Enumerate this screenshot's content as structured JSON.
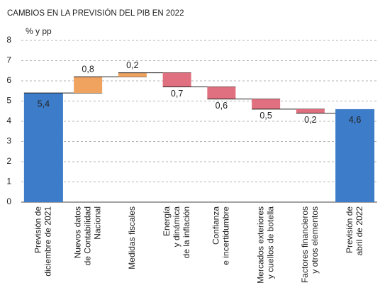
{
  "chart_data": {
    "type": "waterfall",
    "subtitle": "CAMBIOS EN LA PREVISIÓN DEL PIB EN 2022",
    "y_label": "% y pp",
    "categories": [
      [
        "Previsión de",
        "diciembre de 2021"
      ],
      [
        "Nuevos datos",
        "de Contabilidad",
        "Nacional"
      ],
      [
        "Medidas fiscales"
      ],
      [
        "Energía",
        "y dinámica",
        "de la inflación"
      ],
      [
        "Confianza",
        "e incertidumbre"
      ],
      [
        "Mercados exteriores",
        "y cuellos de botella"
      ],
      [
        "Factores financieros",
        "y otros elementos"
      ],
      [
        "Previsión de",
        "abril de 2022"
      ]
    ],
    "values": [
      5.4,
      0.8,
      0.2,
      -0.7,
      -0.6,
      -0.5,
      -0.2,
      4.6
    ],
    "value_labels": [
      "5,4",
      "0,8",
      "0,2",
      "0,7",
      "0,6",
      "0,5",
      "0,2",
      "4,6"
    ],
    "total_color": "#3d7cc9",
    "increase_color": "#f0a35e",
    "decrease_color": "#e0707f",
    "ylim": [
      0,
      8
    ],
    "yticks": [
      0,
      1,
      2,
      3,
      4,
      5,
      6,
      7,
      8
    ],
    "grid": true
  }
}
